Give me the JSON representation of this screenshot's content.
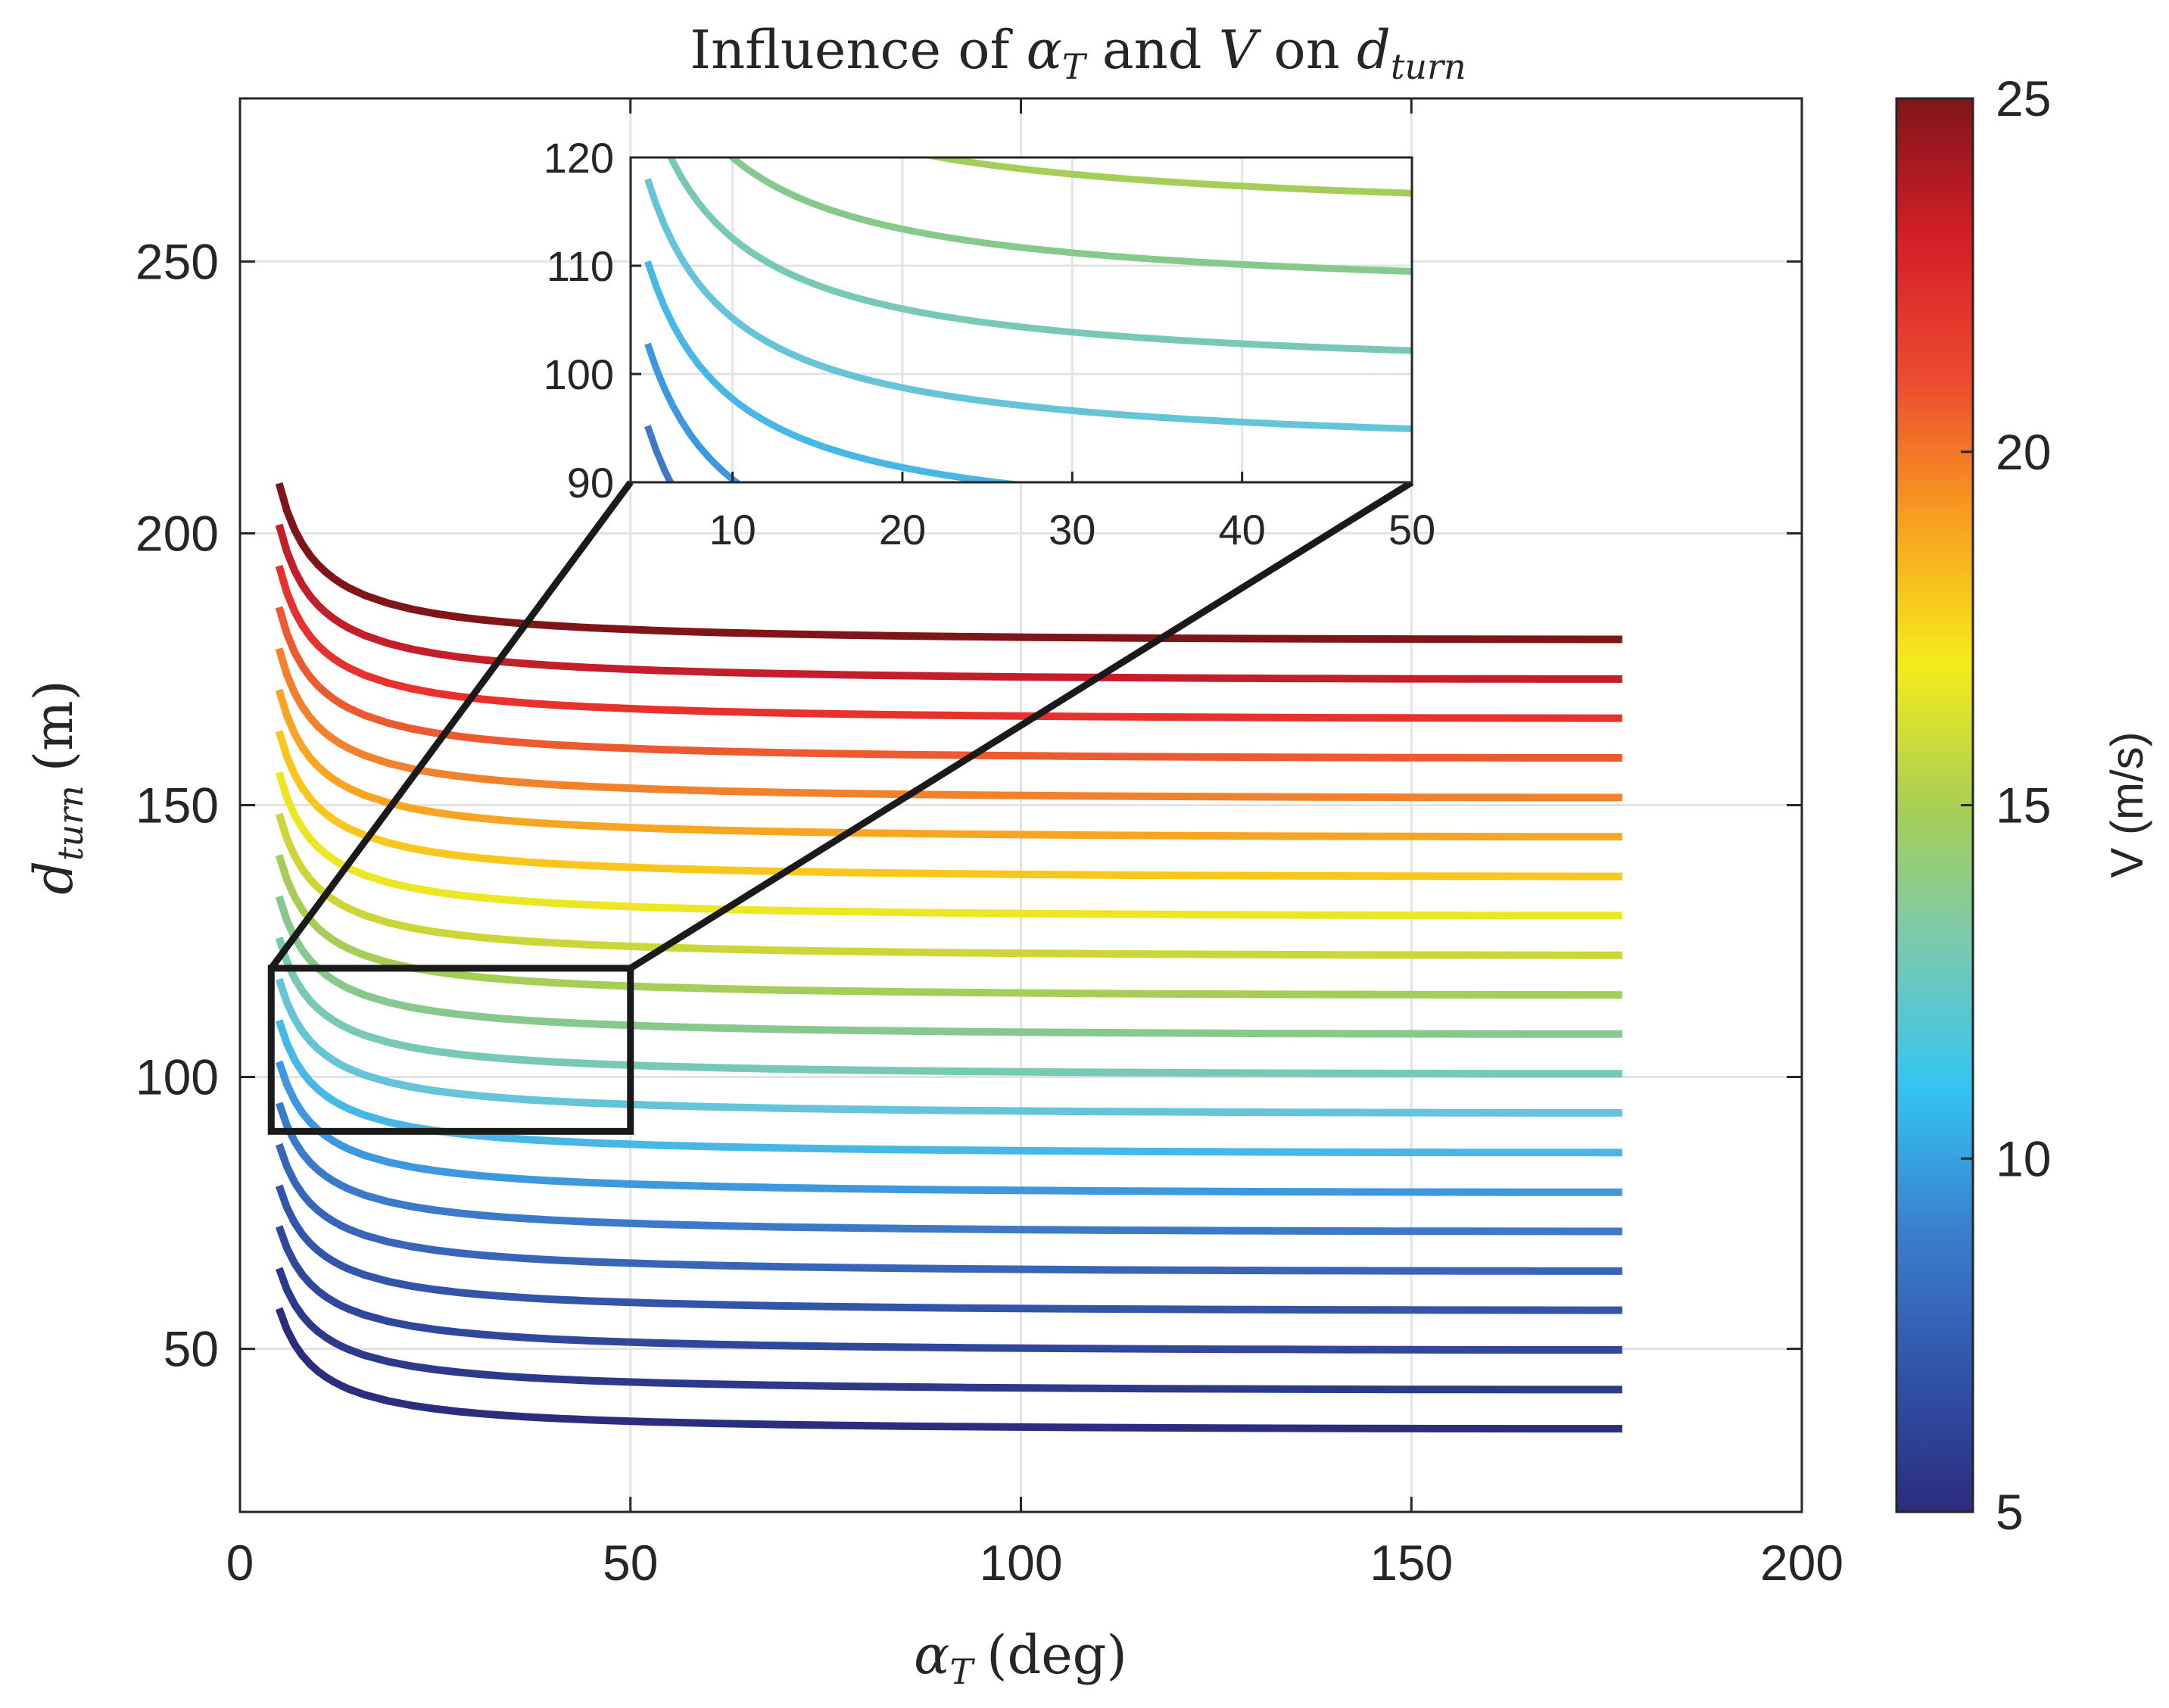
{
  "chart_data": {
    "type": "line",
    "title": {
      "prefix": "Influence of ",
      "var1": "α",
      "var1_sub": "T",
      "mid": " and ",
      "var2": "V",
      "mid2": " on ",
      "var3": "d",
      "var3_sub": "turn"
    },
    "xlabel": {
      "var": "α",
      "sub": "T",
      "unit": "(deg)"
    },
    "ylabel": {
      "var": "d",
      "sub": "turn",
      "unit": "(m)"
    },
    "xlim": [
      0,
      200
    ],
    "ylim": [
      20,
      280
    ],
    "xticks": [
      0,
      50,
      100,
      150,
      200
    ],
    "yticks": [
      50,
      100,
      150,
      200,
      250
    ],
    "grid": true,
    "x_range_deg": [
      5,
      177
    ],
    "series": [
      {
        "name": "V = 5 m/s",
        "V": 5,
        "start": 57.4,
        "end": 35.3,
        "color": "#2b2d7e"
      },
      {
        "name": "V = 6 m/s",
        "V": 6,
        "start": 64.8,
        "end": 42.5,
        "color": "#2d3a8c"
      },
      {
        "name": "V = 7 m/s",
        "V": 7,
        "start": 72.5,
        "end": 49.8,
        "color": "#30479b"
      },
      {
        "name": "V = 8 m/s",
        "V": 8,
        "start": 80.0,
        "end": 57.1,
        "color": "#3255a9"
      },
      {
        "name": "V = 9 m/s",
        "V": 9,
        "start": 87.6,
        "end": 64.3,
        "color": "#3865b8"
      },
      {
        "name": "V = 10 m/s",
        "V": 10,
        "start": 95.2,
        "end": 71.6,
        "color": "#3c79c9"
      },
      {
        "name": "V = 11 m/s",
        "V": 11,
        "start": 102.8,
        "end": 78.8,
        "color": "#3d98dd"
      },
      {
        "name": "V = 12 m/s",
        "V": 12,
        "start": 110.4,
        "end": 86.1,
        "color": "#47b8e6"
      },
      {
        "name": "V = 13 m/s",
        "V": 13,
        "start": 118.0,
        "end": 93.4,
        "color": "#66c4d8"
      },
      {
        "name": "V = 14 m/s",
        "V": 14,
        "start": 125.6,
        "end": 100.6,
        "color": "#77c8b5"
      },
      {
        "name": "V = 15 m/s",
        "V": 15,
        "start": 133.2,
        "end": 107.9,
        "color": "#87c98c"
      },
      {
        "name": "V = 16 m/s",
        "V": 16,
        "start": 140.8,
        "end": 115.1,
        "color": "#a6cd58"
      },
      {
        "name": "V = 17 m/s",
        "V": 17,
        "start": 148.4,
        "end": 122.4,
        "color": "#ccd637"
      },
      {
        "name": "V = 18 m/s",
        "V": 18,
        "start": 156.0,
        "end": 129.7,
        "color": "#ede623"
      },
      {
        "name": "V = 19 m/s",
        "V": 19,
        "start": 163.6,
        "end": 136.9,
        "color": "#f9c71c"
      },
      {
        "name": "V = 20 m/s",
        "V": 20,
        "start": 171.2,
        "end": 144.2,
        "color": "#f8a522"
      },
      {
        "name": "V = 21 m/s",
        "V": 21,
        "start": 178.8,
        "end": 151.4,
        "color": "#f2812b"
      },
      {
        "name": "V = 22 m/s",
        "V": 22,
        "start": 186.4,
        "end": 158.7,
        "color": "#ec5a30"
      },
      {
        "name": "V = 23 m/s",
        "V": 23,
        "start": 194.0,
        "end": 166.0,
        "color": "#e8312d"
      },
      {
        "name": "V = 24 m/s",
        "V": 24,
        "start": 201.6,
        "end": 173.2,
        "color": "#c41e2a"
      },
      {
        "name": "V = 25 m/s",
        "V": 25,
        "start": 209.2,
        "end": 180.5,
        "color": "#7f1519"
      }
    ],
    "zoom_box": {
      "xlim": [
        4,
        50
      ],
      "ylim": [
        90,
        120
      ]
    },
    "inset": {
      "xlim": [
        4,
        50
      ],
      "ylim": [
        90,
        120
      ],
      "xticks": [
        10,
        20,
        30,
        40,
        50
      ],
      "yticks": [
        90,
        100,
        110,
        120
      ]
    },
    "colorbar": {
      "label": "V (m/s)",
      "range": [
        5,
        25
      ],
      "ticks": [
        5,
        10,
        15,
        20,
        25
      ],
      "colors": [
        "#2b2d7e",
        "#3154a8",
        "#3c7fcf",
        "#34c5f1",
        "#78c9b2",
        "#a9cf54",
        "#f5eb1c",
        "#f8a11f",
        "#ec4c30",
        "#d51f27",
        "#7f1519"
      ]
    }
  }
}
